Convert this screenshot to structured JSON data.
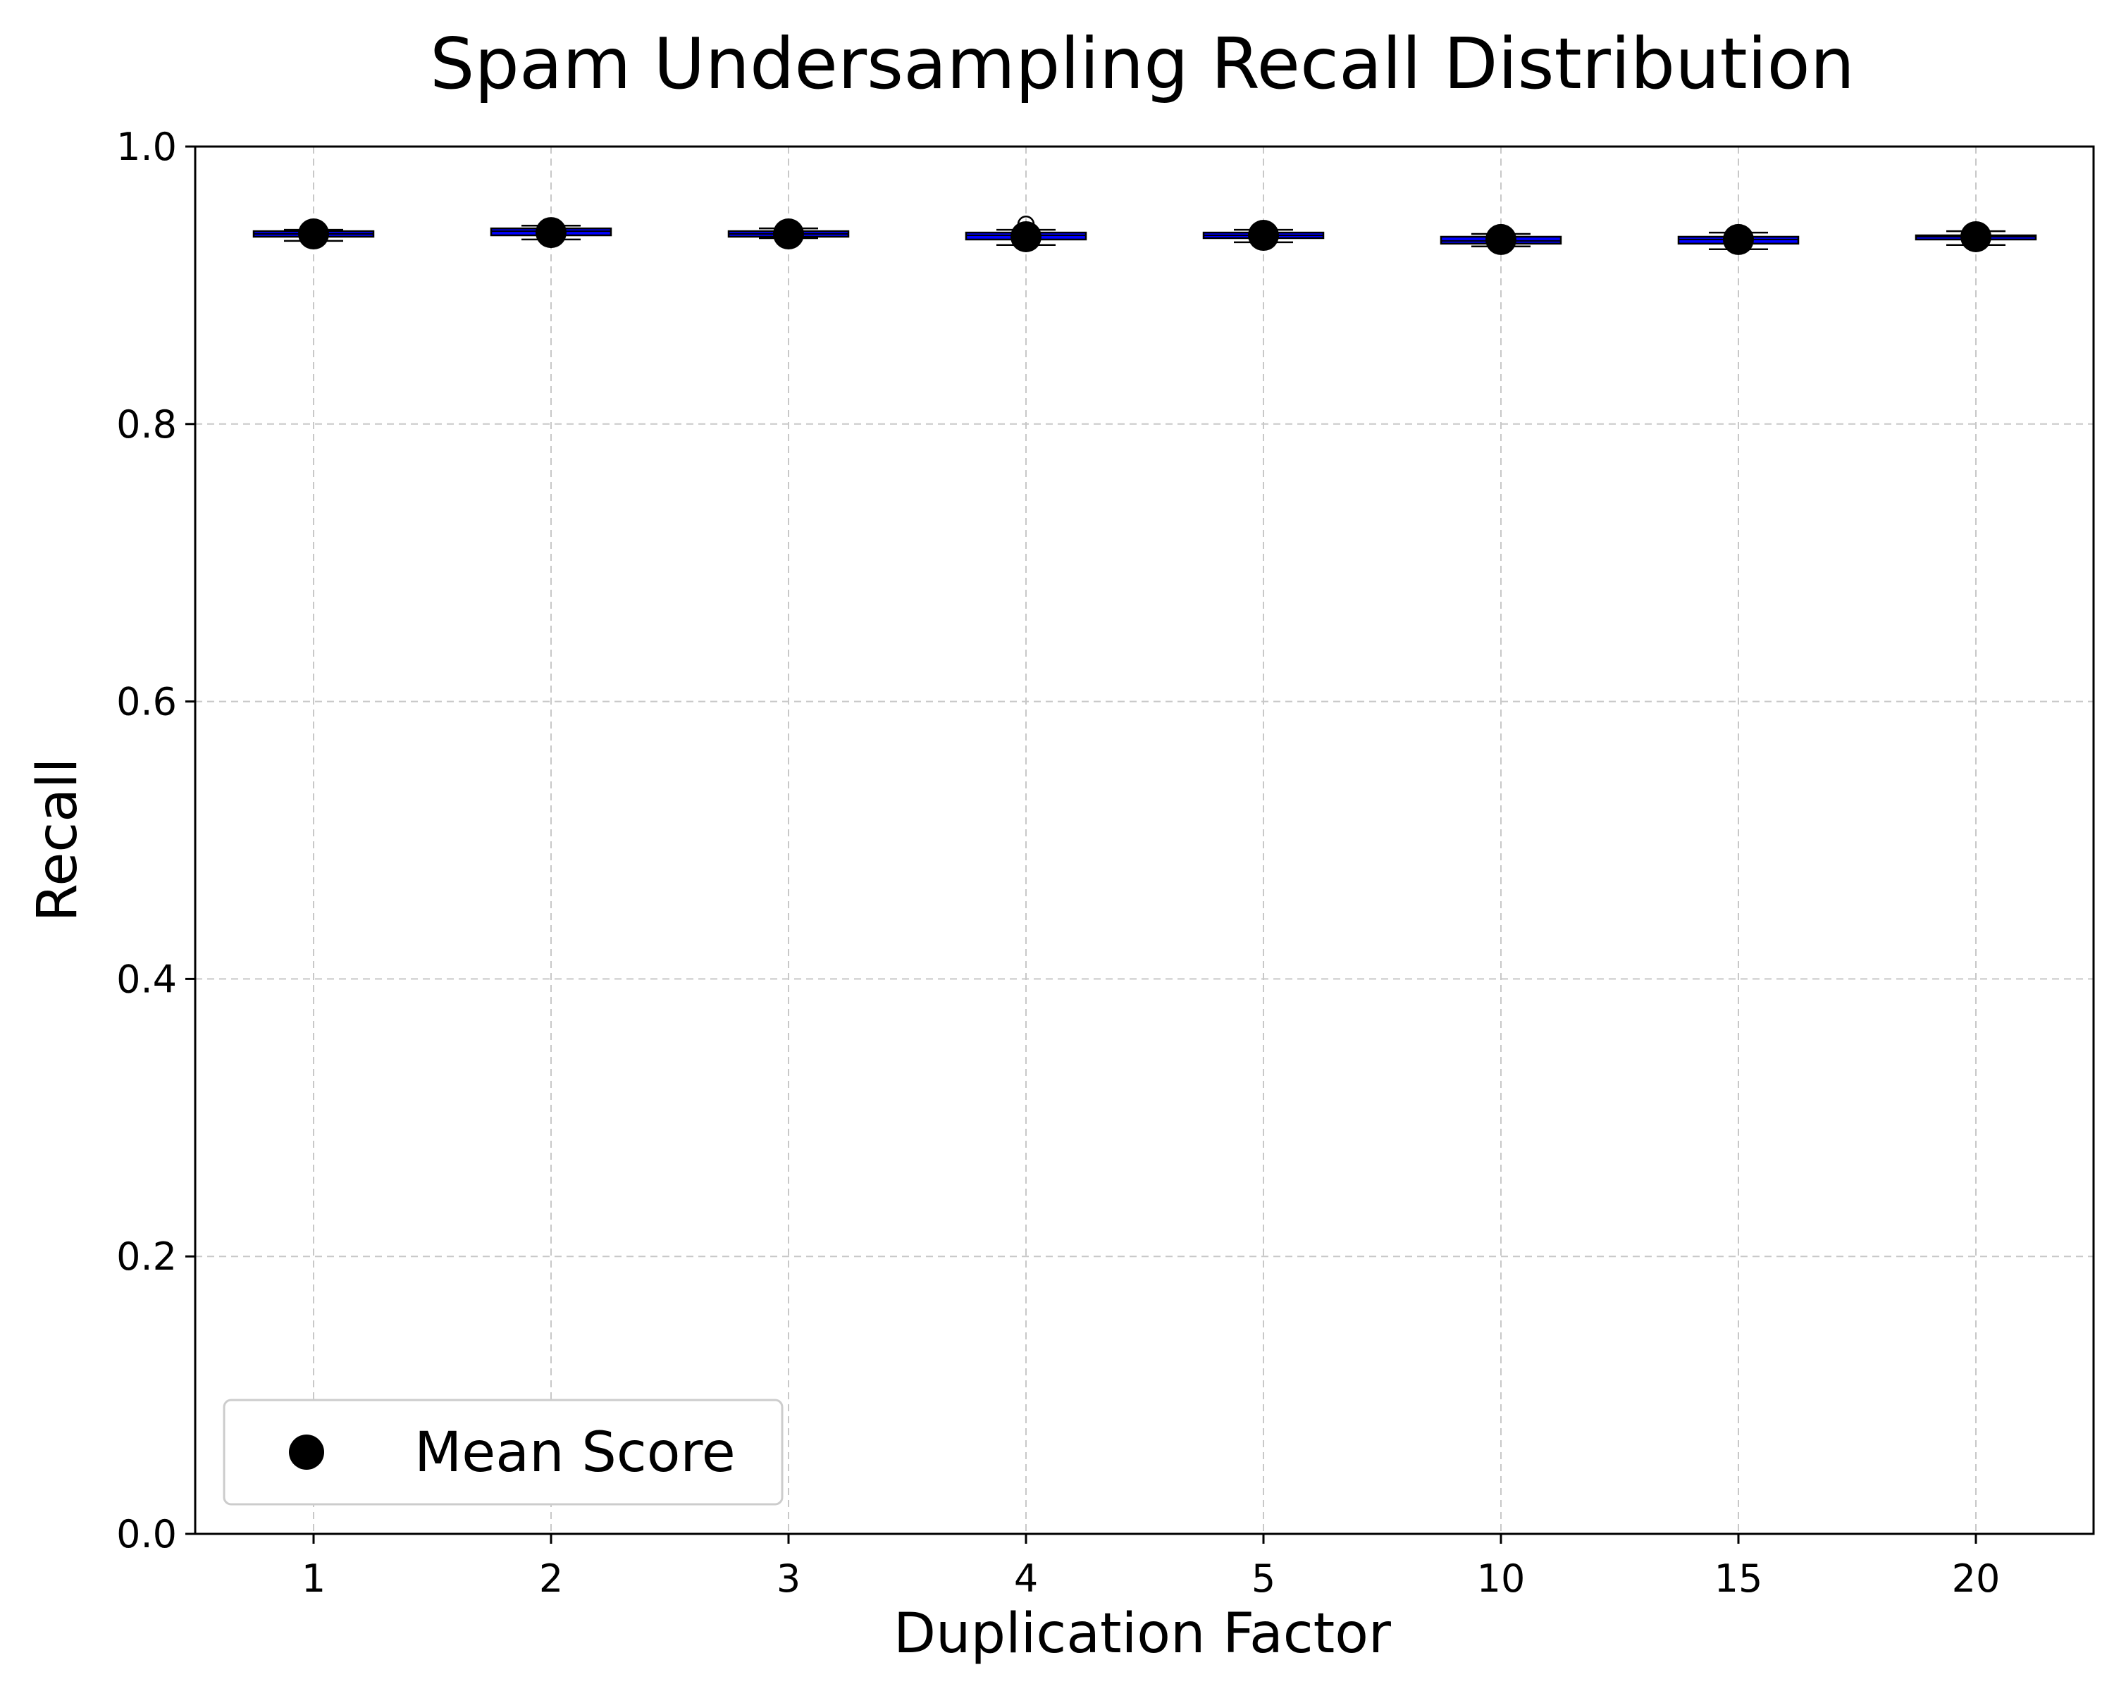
{
  "chart_data": {
    "type": "box",
    "title": "Spam Undersampling Recall Distribution",
    "xlabel": "Duplication Factor",
    "ylabel": "Recall",
    "ylim": [
      0.0,
      1.0
    ],
    "yticks": [
      "0.0",
      "0.2",
      "0.4",
      "0.6",
      "0.8",
      "1.0"
    ],
    "categories": [
      "1",
      "2",
      "3",
      "4",
      "5",
      "10",
      "15",
      "20"
    ],
    "boxes": [
      {
        "whisker_low": 0.932,
        "q1": 0.935,
        "median": 0.937,
        "q3": 0.939,
        "whisker_high": 0.94,
        "mean": 0.937,
        "outliers": []
      },
      {
        "whisker_low": 0.933,
        "q1": 0.936,
        "median": 0.939,
        "q3": 0.941,
        "whisker_high": 0.943,
        "mean": 0.938,
        "outliers": []
      },
      {
        "whisker_low": 0.934,
        "q1": 0.935,
        "median": 0.937,
        "q3": 0.939,
        "whisker_high": 0.941,
        "mean": 0.937,
        "outliers": []
      },
      {
        "whisker_low": 0.929,
        "q1": 0.933,
        "median": 0.936,
        "q3": 0.938,
        "whisker_high": 0.94,
        "mean": 0.935,
        "outliers": [
          0.944
        ]
      },
      {
        "whisker_low": 0.931,
        "q1": 0.934,
        "median": 0.936,
        "q3": 0.938,
        "whisker_high": 0.94,
        "mean": 0.936,
        "outliers": []
      },
      {
        "whisker_low": 0.928,
        "q1": 0.93,
        "median": 0.932,
        "q3": 0.935,
        "whisker_high": 0.937,
        "mean": 0.933,
        "outliers": []
      },
      {
        "whisker_low": 0.926,
        "q1": 0.93,
        "median": 0.933,
        "q3": 0.935,
        "whisker_high": 0.938,
        "mean": 0.933,
        "outliers": []
      },
      {
        "whisker_low": 0.929,
        "q1": 0.933,
        "median": 0.935,
        "q3": 0.936,
        "whisker_high": 0.939,
        "mean": 0.935,
        "outliers": []
      }
    ],
    "box_color": "#0000ff",
    "mean_marker_color": "#000000",
    "grid": true,
    "legend": {
      "position": "lower-left",
      "entries": [
        "Mean Score"
      ]
    }
  }
}
